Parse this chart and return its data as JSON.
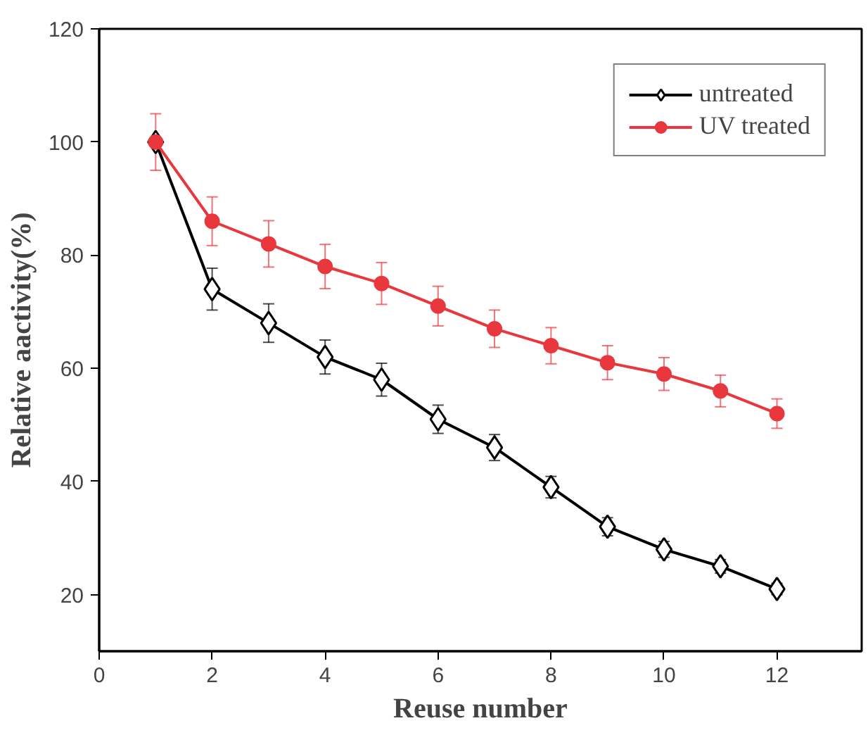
{
  "chart_data": {
    "type": "line",
    "xlabel": "Reuse number",
    "ylabel": "Relative aactivity(%)",
    "x": [
      1,
      2,
      3,
      4,
      5,
      6,
      7,
      8,
      9,
      10,
      11,
      12
    ],
    "series": [
      {
        "name": "untreated",
        "color": "#000000",
        "marker": "diamond",
        "values": [
          100,
          74,
          68,
          62,
          58,
          51,
          46,
          39,
          32,
          28,
          25,
          21
        ],
        "errors": [
          null,
          3.7,
          3.4,
          3,
          2.9,
          2.5,
          2.3,
          1.9,
          1.6,
          1.4,
          1.2,
          1
        ]
      },
      {
        "name": "UV treated",
        "color": "#e8383d",
        "marker": "circle",
        "values": [
          100,
          86,
          82,
          78,
          75,
          71,
          67,
          64,
          61,
          59,
          56,
          52
        ],
        "errors": [
          5,
          4.3,
          4.1,
          3.9,
          3.7,
          3.5,
          3.3,
          3.2,
          3,
          2.9,
          2.8,
          2.6
        ]
      }
    ],
    "xlim": [
      0,
      13.5
    ],
    "xticks": [
      0,
      2,
      4,
      6,
      8,
      10,
      12
    ],
    "ylim": [
      10,
      120
    ],
    "yticks": [
      20,
      40,
      60,
      80,
      100,
      120
    ],
    "grid": false,
    "legend": "top right",
    "line_style": "solid"
  }
}
